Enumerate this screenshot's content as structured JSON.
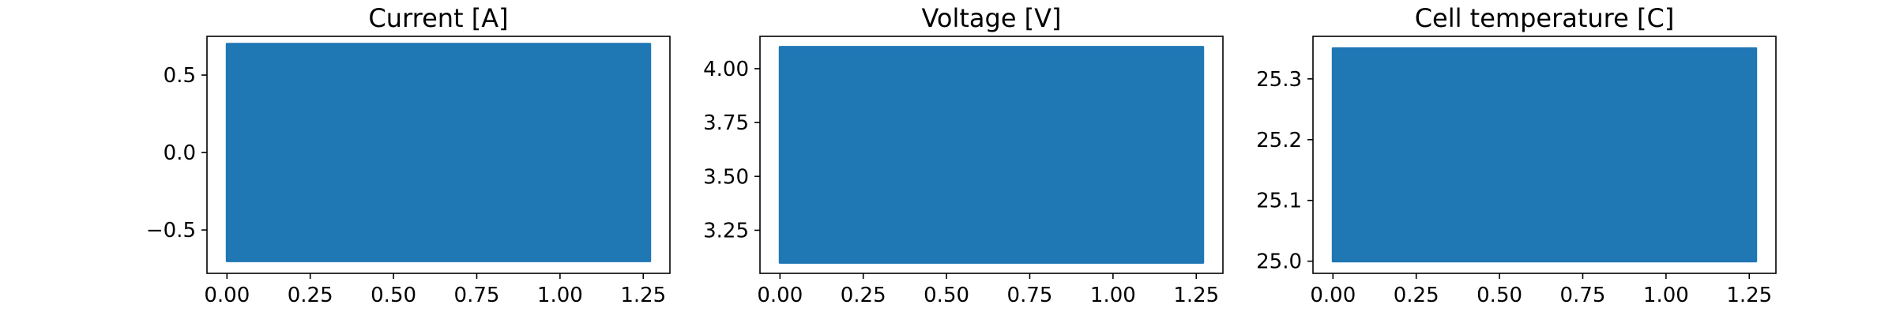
{
  "chart_data": [
    {
      "type": "area",
      "title": "Current [A]",
      "xlabel": "",
      "ylabel": "",
      "xlim": [
        -0.06,
        1.33
      ],
      "ylim": [
        -0.78,
        0.75
      ],
      "x_ticks": [
        0.0,
        0.25,
        0.5,
        0.75,
        1.0,
        1.25
      ],
      "x_tick_labels": [
        "0.00",
        "0.25",
        "0.50",
        "0.75",
        "1.00",
        "1.25"
      ],
      "y_ticks": [
        0.5,
        0.0,
        -0.5
      ],
      "y_tick_labels": [
        "0.5",
        "0.0",
        "−0.5"
      ],
      "grid": false,
      "legend": "none",
      "series": [
        {
          "color": "#1f77b4",
          "x": [
            0.0,
            1.27
          ],
          "y_min": -0.7,
          "y_max": 0.7
        }
      ]
    },
    {
      "type": "area",
      "title": "Voltage [V]",
      "xlabel": "",
      "ylabel": "",
      "xlim": [
        -0.06,
        1.33
      ],
      "ylim": [
        3.05,
        4.15
      ],
      "x_ticks": [
        0.0,
        0.25,
        0.5,
        0.75,
        1.0,
        1.25
      ],
      "x_tick_labels": [
        "0.00",
        "0.25",
        "0.50",
        "0.75",
        "1.00",
        "1.25"
      ],
      "y_ticks": [
        4.0,
        3.75,
        3.5,
        3.25
      ],
      "y_tick_labels": [
        "4.00",
        "3.75",
        "3.50",
        "3.25"
      ],
      "grid": false,
      "legend": "none",
      "series": [
        {
          "color": "#1f77b4",
          "x": [
            0.0,
            1.27
          ],
          "y_min": 3.1,
          "y_max": 4.1
        }
      ]
    },
    {
      "type": "area",
      "title": "Cell temperature [C]",
      "xlabel": "",
      "ylabel": "",
      "xlim": [
        -0.06,
        1.33
      ],
      "ylim": [
        24.98,
        25.37
      ],
      "x_ticks": [
        0.0,
        0.25,
        0.5,
        0.75,
        1.0,
        1.25
      ],
      "x_tick_labels": [
        "0.00",
        "0.25",
        "0.50",
        "0.75",
        "1.00",
        "1.25"
      ],
      "y_ticks": [
        25.3,
        25.2,
        25.1,
        25.0
      ],
      "y_tick_labels": [
        "25.3",
        "25.2",
        "25.1",
        "25.0"
      ],
      "grid": false,
      "legend": "none",
      "series": [
        {
          "color": "#1f77b4",
          "x": [
            0.0,
            1.27
          ],
          "y_min": 25.0,
          "y_max": 25.35
        }
      ]
    }
  ]
}
